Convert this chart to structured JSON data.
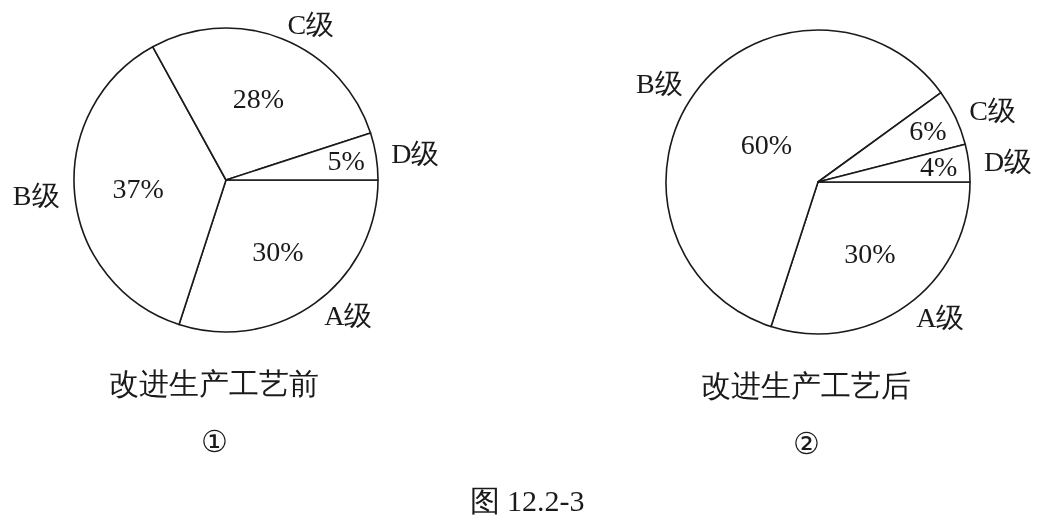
{
  "chart_data": [
    {
      "type": "pie",
      "title": "改进生产工艺前",
      "subtitle": "①",
      "categories": [
        "A级",
        "B级",
        "C级",
        "D级"
      ],
      "values": [
        30,
        37,
        28,
        5
      ],
      "value_labels": [
        "30%",
        "37%",
        "28%",
        "5%"
      ],
      "colors": [
        "#ffffff",
        "#ffffff",
        "#ffffff",
        "#ffffff"
      ]
    },
    {
      "type": "pie",
      "title": "改进生产工艺后",
      "subtitle": "②",
      "categories": [
        "A级",
        "B级",
        "C级",
        "D级"
      ],
      "values": [
        30,
        60,
        6,
        4
      ],
      "value_labels": [
        "30%",
        "60%",
        "6%",
        "4%"
      ],
      "colors": [
        "#ffffff",
        "#ffffff",
        "#ffffff",
        "#ffffff"
      ],
      "annotations": [
        "图 12.2-3"
      ]
    }
  ]
}
